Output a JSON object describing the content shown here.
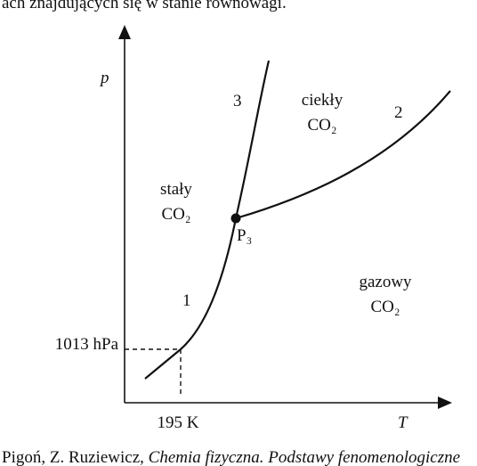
{
  "top_text": "ach znajdujących się w stanie równowagi.",
  "diagram": {
    "axis_y": "p",
    "axis_x": "T",
    "curve_labels": [
      "1",
      "2",
      "3"
    ],
    "regions": [
      {
        "name": "stały",
        "formula": "CO₂"
      },
      {
        "name": "ciekły",
        "formula": "CO₂"
      },
      {
        "name": "gazowy",
        "formula": "CO₂"
      }
    ],
    "triple_point": "P₃",
    "pressure_mark": "1013 hPa",
    "temperature_mark": "195 K"
  },
  "footer": {
    "authors": "Pigoń, Z. Ruziewicz, ",
    "title": "Chemia fizyczna. Podstawy fenomenologiczne"
  }
}
